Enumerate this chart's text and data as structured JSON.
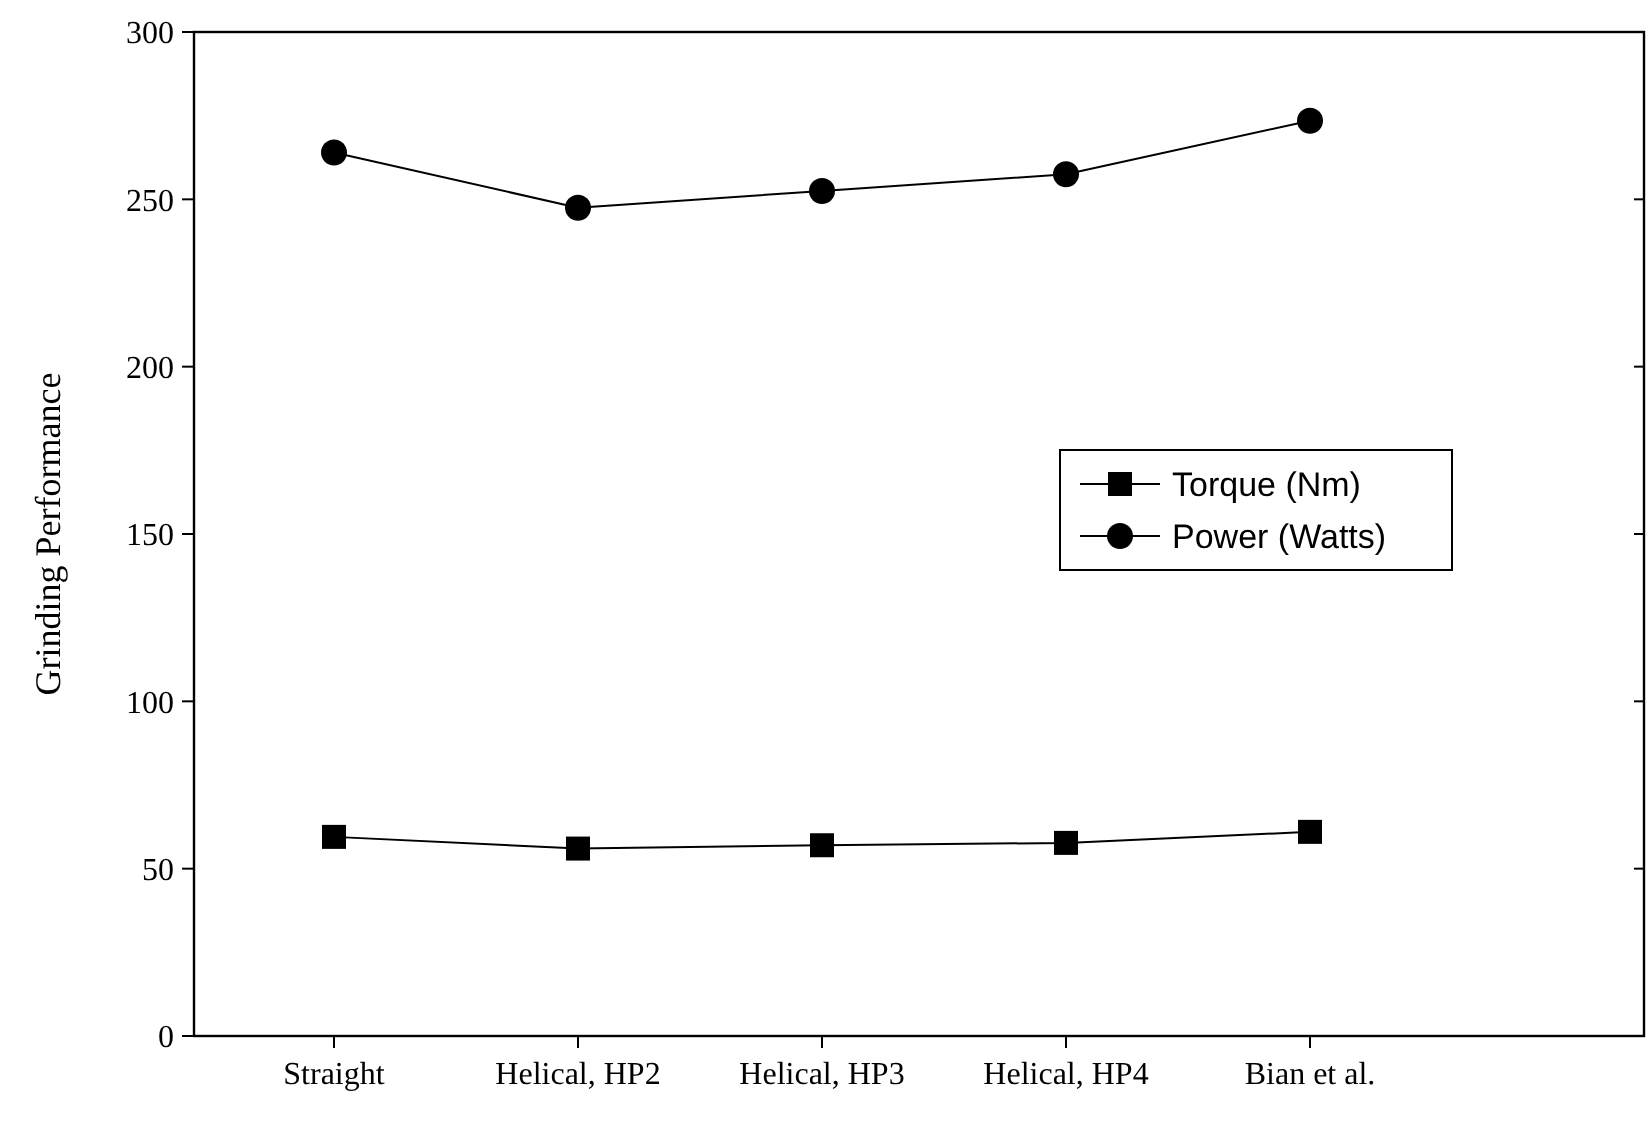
{
  "chart_data": {
    "type": "line",
    "ylabel": "Grinding Performance",
    "categories": [
      "Straight",
      "Helical, HP2",
      "Helical, HP3",
      "Helical, HP4",
      "Bian et al."
    ],
    "series": [
      {
        "name": "Torque (Nm)",
        "color": "#000000",
        "marker": "square",
        "values": [
          59.5,
          56,
          57,
          57.7,
          61
        ]
      },
      {
        "name": "Power (Watts)",
        "color": "#000000",
        "marker": "circle",
        "values": [
          264,
          247.5,
          252.5,
          257.5,
          273.5
        ]
      }
    ],
    "ylim": [
      0,
      300
    ],
    "yticks": [
      0,
      50,
      100,
      150,
      200,
      250,
      300
    ],
    "grid": false,
    "legend": "right",
    "line_style": "solid"
  }
}
